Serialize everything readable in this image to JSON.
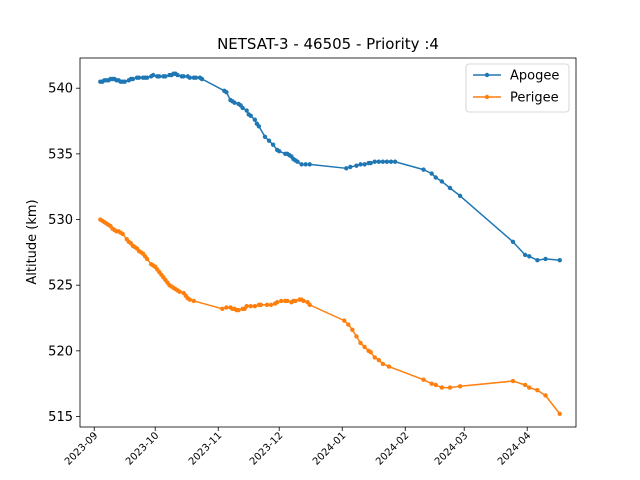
{
  "chart_data": {
    "type": "line",
    "title": "NETSAT-3 - 46505 - Priority :4",
    "xlabel": "",
    "ylabel": "Altitude (km)",
    "x_range": [
      "2023-08-25",
      "2024-04-25"
    ],
    "xticks": [
      "2023-09",
      "2023-10",
      "2023-11",
      "2023-12",
      "2024-01",
      "2024-02",
      "2024-03",
      "2024-04"
    ],
    "ylim": [
      514.2,
      542.3
    ],
    "yticks": [
      515,
      520,
      525,
      530,
      535,
      540
    ],
    "grid": false,
    "legend_position": "top-right",
    "series": [
      {
        "name": "Apogee",
        "color": "#1f77b4",
        "points": [
          [
            "2023-09-04",
            540.5
          ],
          [
            "2023-09-05",
            540.5
          ],
          [
            "2023-09-06",
            540.6
          ],
          [
            "2023-09-07",
            540.6
          ],
          [
            "2023-09-08",
            540.6
          ],
          [
            "2023-09-09",
            540.7
          ],
          [
            "2023-09-10",
            540.7
          ],
          [
            "2023-09-11",
            540.7
          ],
          [
            "2023-09-12",
            540.6
          ],
          [
            "2023-09-13",
            540.6
          ],
          [
            "2023-09-14",
            540.5
          ],
          [
            "2023-09-15",
            540.5
          ],
          [
            "2023-09-16",
            540.5
          ],
          [
            "2023-09-18",
            540.6
          ],
          [
            "2023-09-19",
            540.7
          ],
          [
            "2023-09-20",
            540.7
          ],
          [
            "2023-09-22",
            540.8
          ],
          [
            "2023-09-23",
            540.8
          ],
          [
            "2023-09-25",
            540.8
          ],
          [
            "2023-09-26",
            540.8
          ],
          [
            "2023-09-27",
            540.8
          ],
          [
            "2023-09-29",
            540.9
          ],
          [
            "2023-09-30",
            541.0
          ],
          [
            "2023-10-02",
            540.9
          ],
          [
            "2023-10-03",
            540.9
          ],
          [
            "2023-10-05",
            540.9
          ],
          [
            "2023-10-06",
            540.9
          ],
          [
            "2023-10-08",
            541.0
          ],
          [
            "2023-10-09",
            541.0
          ],
          [
            "2023-10-10",
            541.1
          ],
          [
            "2023-10-11",
            541.1
          ],
          [
            "2023-10-12",
            541.0
          ],
          [
            "2023-10-14",
            540.9
          ],
          [
            "2023-10-15",
            540.9
          ],
          [
            "2023-10-17",
            540.9
          ],
          [
            "2023-10-18",
            540.8
          ],
          [
            "2023-10-20",
            540.8
          ],
          [
            "2023-10-21",
            540.8
          ],
          [
            "2023-10-23",
            540.8
          ],
          [
            "2023-10-24",
            540.7
          ],
          [
            "2023-11-04",
            539.8
          ],
          [
            "2023-11-05",
            539.7
          ],
          [
            "2023-11-07",
            539.1
          ],
          [
            "2023-11-08",
            539.0
          ],
          [
            "2023-11-09",
            538.9
          ],
          [
            "2023-11-11",
            538.8
          ],
          [
            "2023-11-12",
            538.7
          ],
          [
            "2023-11-13",
            538.5
          ],
          [
            "2023-11-15",
            538.3
          ],
          [
            "2023-11-16",
            538.0
          ],
          [
            "2023-11-17",
            537.9
          ],
          [
            "2023-11-19",
            537.6
          ],
          [
            "2023-11-20",
            537.3
          ],
          [
            "2023-11-21",
            537.1
          ],
          [
            "2023-11-24",
            536.3
          ],
          [
            "2023-11-26",
            536.0
          ],
          [
            "2023-11-28",
            535.7
          ],
          [
            "2023-11-30",
            535.3
          ],
          [
            "2023-12-01",
            535.2
          ],
          [
            "2023-12-04",
            535.0
          ],
          [
            "2023-12-05",
            535.0
          ],
          [
            "2023-12-06",
            534.9
          ],
          [
            "2023-12-07",
            534.8
          ],
          [
            "2023-12-08",
            534.6
          ],
          [
            "2023-12-09",
            534.5
          ],
          [
            "2023-12-10",
            534.4
          ],
          [
            "2023-12-12",
            534.2
          ],
          [
            "2023-12-14",
            534.2
          ],
          [
            "2023-12-16",
            534.2
          ],
          [
            "2024-01-03",
            533.9
          ],
          [
            "2024-01-05",
            534.0
          ],
          [
            "2024-01-08",
            534.1
          ],
          [
            "2024-01-10",
            534.2
          ],
          [
            "2024-01-12",
            534.2
          ],
          [
            "2024-01-14",
            534.3
          ],
          [
            "2024-01-15",
            534.3
          ],
          [
            "2024-01-17",
            534.4
          ],
          [
            "2024-01-19",
            534.4
          ],
          [
            "2024-01-21",
            534.4
          ],
          [
            "2024-01-23",
            534.4
          ],
          [
            "2024-01-25",
            534.4
          ],
          [
            "2024-01-27",
            534.4
          ],
          [
            "2024-02-10",
            533.8
          ],
          [
            "2024-02-14",
            533.5
          ],
          [
            "2024-02-16",
            533.2
          ],
          [
            "2024-02-19",
            532.9
          ],
          [
            "2024-02-23",
            532.4
          ],
          [
            "2024-02-28",
            531.8
          ],
          [
            "2024-03-25",
            528.3
          ],
          [
            "2024-03-31",
            527.3
          ],
          [
            "2024-04-02",
            527.2
          ],
          [
            "2024-04-06",
            526.9
          ],
          [
            "2024-04-10",
            527.0
          ],
          [
            "2024-04-17",
            526.9
          ]
        ]
      },
      {
        "name": "Perigee",
        "color": "#ff7f0e",
        "points": [
          [
            "2023-09-04",
            530.0
          ],
          [
            "2023-09-05",
            529.9
          ],
          [
            "2023-09-06",
            529.8
          ],
          [
            "2023-09-07",
            529.7
          ],
          [
            "2023-09-08",
            529.6
          ],
          [
            "2023-09-09",
            529.5
          ],
          [
            "2023-09-10",
            529.3
          ],
          [
            "2023-09-11",
            529.2
          ],
          [
            "2023-09-12",
            529.1
          ],
          [
            "2023-09-13",
            529.1
          ],
          [
            "2023-09-14",
            529.0
          ],
          [
            "2023-09-15",
            528.9
          ],
          [
            "2023-09-17",
            528.5
          ],
          [
            "2023-09-18",
            528.3
          ],
          [
            "2023-09-19",
            528.2
          ],
          [
            "2023-09-20",
            528.0
          ],
          [
            "2023-09-21",
            527.9
          ],
          [
            "2023-09-22",
            527.8
          ],
          [
            "2023-09-23",
            527.6
          ],
          [
            "2023-09-24",
            527.5
          ],
          [
            "2023-09-25",
            527.4
          ],
          [
            "2023-09-26",
            527.2
          ],
          [
            "2023-09-27",
            527.0
          ],
          [
            "2023-09-29",
            526.6
          ],
          [
            "2023-09-30",
            526.5
          ],
          [
            "2023-10-01",
            526.4
          ],
          [
            "2023-10-02",
            526.2
          ],
          [
            "2023-10-03",
            526.0
          ],
          [
            "2023-10-04",
            525.8
          ],
          [
            "2023-10-05",
            525.6
          ],
          [
            "2023-10-06",
            525.4
          ],
          [
            "2023-10-07",
            525.2
          ],
          [
            "2023-10-08",
            525.0
          ],
          [
            "2023-10-09",
            524.9
          ],
          [
            "2023-10-10",
            524.8
          ],
          [
            "2023-10-11",
            524.7
          ],
          [
            "2023-10-12",
            524.6
          ],
          [
            "2023-10-13",
            524.5
          ],
          [
            "2023-10-15",
            524.4
          ],
          [
            "2023-10-16",
            524.2
          ],
          [
            "2023-10-17",
            524.0
          ],
          [
            "2023-10-18",
            523.9
          ],
          [
            "2023-10-20",
            523.8
          ],
          [
            "2023-11-03",
            523.2
          ],
          [
            "2023-11-05",
            523.3
          ],
          [
            "2023-11-07",
            523.3
          ],
          [
            "2023-11-08",
            523.2
          ],
          [
            "2023-11-09",
            523.2
          ],
          [
            "2023-11-10",
            523.1
          ],
          [
            "2023-11-11",
            523.1
          ],
          [
            "2023-11-13",
            523.2
          ],
          [
            "2023-11-14",
            523.2
          ],
          [
            "2023-11-15",
            523.4
          ],
          [
            "2023-11-17",
            523.4
          ],
          [
            "2023-11-19",
            523.4
          ],
          [
            "2023-11-21",
            523.5
          ],
          [
            "2023-11-22",
            523.5
          ],
          [
            "2023-11-25",
            523.5
          ],
          [
            "2023-11-27",
            523.5
          ],
          [
            "2023-11-29",
            523.6
          ],
          [
            "2023-11-30",
            523.7
          ],
          [
            "2023-12-02",
            523.8
          ],
          [
            "2023-12-04",
            523.8
          ],
          [
            "2023-12-05",
            523.8
          ],
          [
            "2023-12-07",
            523.7
          ],
          [
            "2023-12-08",
            523.8
          ],
          [
            "2023-12-09",
            523.8
          ],
          [
            "2023-12-11",
            523.9
          ],
          [
            "2023-12-12",
            523.9
          ],
          [
            "2023-12-13",
            523.8
          ],
          [
            "2023-12-15",
            523.7
          ],
          [
            "2023-12-16",
            523.5
          ],
          [
            "2024-01-02",
            522.3
          ],
          [
            "2024-01-04",
            522.0
          ],
          [
            "2024-01-06",
            521.6
          ],
          [
            "2024-01-08",
            521.1
          ],
          [
            "2024-01-10",
            520.6
          ],
          [
            "2024-01-12",
            520.3
          ],
          [
            "2024-01-14",
            520.0
          ],
          [
            "2024-01-15",
            519.9
          ],
          [
            "2024-01-17",
            519.5
          ],
          [
            "2024-01-19",
            519.3
          ],
          [
            "2024-01-21",
            519.0
          ],
          [
            "2024-01-24",
            518.8
          ],
          [
            "2024-02-10",
            517.8
          ],
          [
            "2024-02-14",
            517.5
          ],
          [
            "2024-02-16",
            517.4
          ],
          [
            "2024-02-19",
            517.2
          ],
          [
            "2024-02-23",
            517.2
          ],
          [
            "2024-02-28",
            517.3
          ],
          [
            "2024-03-25",
            517.7
          ],
          [
            "2024-03-31",
            517.4
          ],
          [
            "2024-04-02",
            517.2
          ],
          [
            "2024-04-06",
            517.0
          ],
          [
            "2024-04-10",
            516.6
          ],
          [
            "2024-04-17",
            515.2
          ]
        ]
      }
    ]
  }
}
